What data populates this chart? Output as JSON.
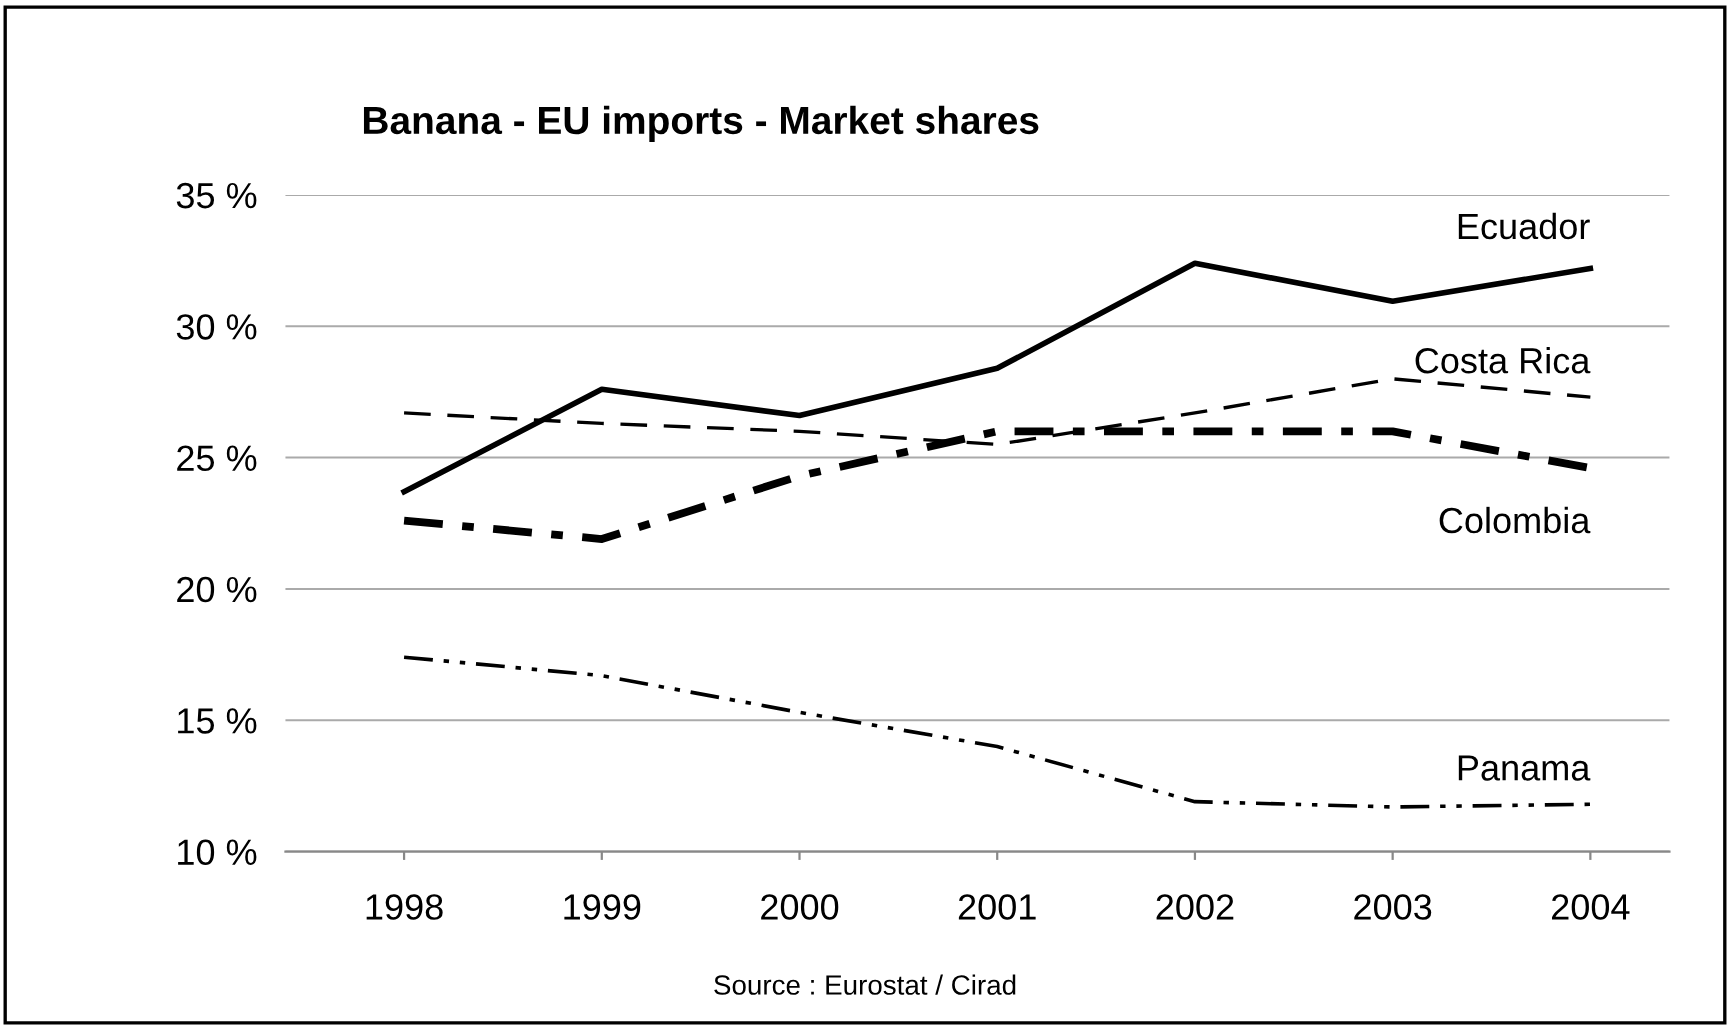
{
  "chart_data": {
    "type": "line",
    "title": "Banana - EU imports - Market shares",
    "categories": [
      "1998",
      "1999",
      "2000",
      "2001",
      "2002",
      "2003",
      "2004"
    ],
    "series": [
      {
        "name": "Ecuador",
        "color": "#000000",
        "line_style": "solid",
        "values": [
          23.7,
          27.6,
          26.6,
          28.4,
          32.4,
          30.95,
          32.2
        ]
      },
      {
        "name": "Costa Rica",
        "color": "#000000",
        "line_style": "dashed",
        "values": [
          26.7,
          26.3,
          26.0,
          25.5,
          26.7,
          28.0,
          27.3
        ]
      },
      {
        "name": "Colombia",
        "color": "#000000",
        "line_style": "dashdot",
        "values": [
          22.6,
          21.9,
          24.3,
          26.0,
          26.0,
          26.0,
          24.6
        ]
      },
      {
        "name": "Panama",
        "color": "#000000",
        "line_style": "dashdotdot",
        "values": [
          17.4,
          16.7,
          15.3,
          14.0,
          11.9,
          11.7,
          11.8
        ]
      }
    ],
    "ylim": [
      10,
      35
    ],
    "yticks": [
      {
        "value": 10,
        "label": "10 %"
      },
      {
        "value": 15,
        "label": "15 %"
      },
      {
        "value": 20,
        "label": "20 %"
      },
      {
        "value": 25,
        "label": "25 %"
      },
      {
        "value": 30,
        "label": "30 %"
      },
      {
        "value": 35,
        "label": "35 %"
      }
    ],
    "grid": "y",
    "legend": false,
    "marker": "none",
    "annotations": [
      "Source : Eurostat / Cirad"
    ]
  }
}
